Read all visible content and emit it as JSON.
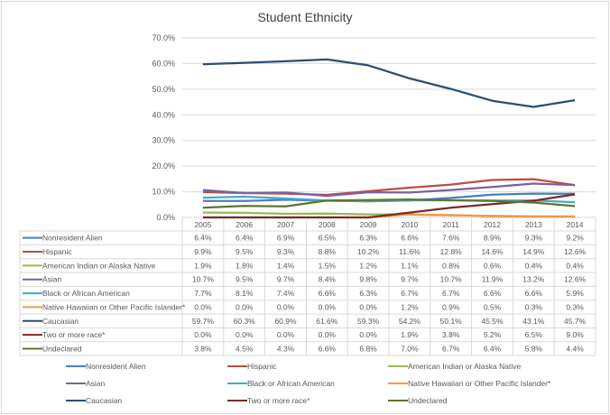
{
  "chart_data": {
    "type": "line",
    "title": "Student Ethnicity",
    "xlabel": "",
    "ylabel": "",
    "ylim": [
      0,
      70
    ],
    "y_ticks": [
      "0.0%",
      "10.0%",
      "20.0%",
      "30.0%",
      "40.0%",
      "50.0%",
      "60.0%",
      "70.0%"
    ],
    "y_tick_values": [
      0,
      10,
      20,
      30,
      40,
      50,
      60,
      70
    ],
    "grid": true,
    "legend_position": "bottom",
    "data_table": true,
    "categories": [
      "2005",
      "2006",
      "2007",
      "2008",
      "2009",
      "2010",
      "2011",
      "2012",
      "2013",
      "2014"
    ],
    "series": [
      {
        "name": "Nonresident Alien",
        "color": "#4a7ebb",
        "values": [
          6.4,
          6.4,
          6.9,
          6.5,
          6.3,
          6.6,
          7.6,
          8.9,
          9.3,
          9.2
        ],
        "labels": [
          "6.4%",
          "6.4%",
          "6.9%",
          "6.5%",
          "6.3%",
          "6.6%",
          "7.6%",
          "8.9%",
          "9.3%",
          "9.2%"
        ]
      },
      {
        "name": "Hispanic",
        "color": "#be4b48",
        "values": [
          9.9,
          9.5,
          9.3,
          8.8,
          10.2,
          11.6,
          12.8,
          14.6,
          14.9,
          12.6
        ],
        "labels": [
          "9.9%",
          "9.5%",
          "9.3%",
          "8.8%",
          "10.2%",
          "11.6%",
          "12.8%",
          "14.6%",
          "14.9%",
          "12.6%"
        ]
      },
      {
        "name": "American Indian or Alaska Native",
        "color": "#98b954",
        "values": [
          1.9,
          1.8,
          1.4,
          1.5,
          1.2,
          1.1,
          0.8,
          0.6,
          0.4,
          0.4
        ],
        "labels": [
          "1.9%",
          "1.8%",
          "1.4%",
          "1.5%",
          "1.2%",
          "1.1%",
          "0.8%",
          "0.6%",
          "0.4%",
          "0.4%"
        ]
      },
      {
        "name": "Asian",
        "color": "#7d60a0",
        "values": [
          10.7,
          9.5,
          9.7,
          8.4,
          9.8,
          9.7,
          10.7,
          11.9,
          13.2,
          12.6
        ],
        "labels": [
          "10.7%",
          "9.5%",
          "9.7%",
          "8.4%",
          "9.8%",
          "9.7%",
          "10.7%",
          "11.9%",
          "13.2%",
          "12.6%"
        ]
      },
      {
        "name": "Black or African American",
        "color": "#46aac5",
        "values": [
          7.7,
          8.1,
          7.4,
          6.6,
          6.3,
          6.7,
          6.7,
          6.6,
          6.6,
          5.9
        ],
        "labels": [
          "7.7%",
          "8.1%",
          "7.4%",
          "6.6%",
          "6.3%",
          "6.7%",
          "6.7%",
          "6.6%",
          "6.6%",
          "5.9%"
        ]
      },
      {
        "name": "Native Hawaiian or Other Pacific Islander*",
        "color": "#f79646",
        "values": [
          0.0,
          0.0,
          0.0,
          0.0,
          0.0,
          1.2,
          0.9,
          0.5,
          0.3,
          0.3
        ],
        "labels": [
          "0.0%",
          "0.0%",
          "0.0%",
          "0.0%",
          "0.0%",
          "1.2%",
          "0.9%",
          "0.5%",
          "0.3%",
          "0.3%"
        ]
      },
      {
        "name": "Caucasian",
        "color": "#2c4d75",
        "values": [
          59.7,
          60.3,
          60.9,
          61.6,
          59.3,
          54.2,
          50.1,
          45.5,
          43.1,
          45.7
        ],
        "labels": [
          "59.7%",
          "60.3%",
          "60.9%",
          "61.6%",
          "59.3%",
          "54.2%",
          "50.1%",
          "45.5%",
          "43.1%",
          "45.7%"
        ]
      },
      {
        "name": "Two or more race*",
        "color": "#772c2a",
        "values": [
          0.0,
          0.0,
          0.0,
          0.0,
          0.0,
          1.9,
          3.8,
          5.2,
          6.5,
          9.0
        ],
        "labels": [
          "0.0%",
          "0.0%",
          "0.0%",
          "0.0%",
          "0.0%",
          "1.9%",
          "3.8%",
          "5.2%",
          "6.5%",
          "9.0%"
        ]
      },
      {
        "name": "Undeclared",
        "color": "#5f7530",
        "values": [
          3.8,
          4.5,
          4.3,
          6.6,
          6.8,
          7.0,
          6.7,
          6.4,
          5.8,
          4.4
        ],
        "labels": [
          "3.8%",
          "4.5%",
          "4.3%",
          "6.6%",
          "6.8%",
          "7.0%",
          "6.7%",
          "6.4%",
          "5.8%",
          "4.4%"
        ]
      }
    ]
  }
}
